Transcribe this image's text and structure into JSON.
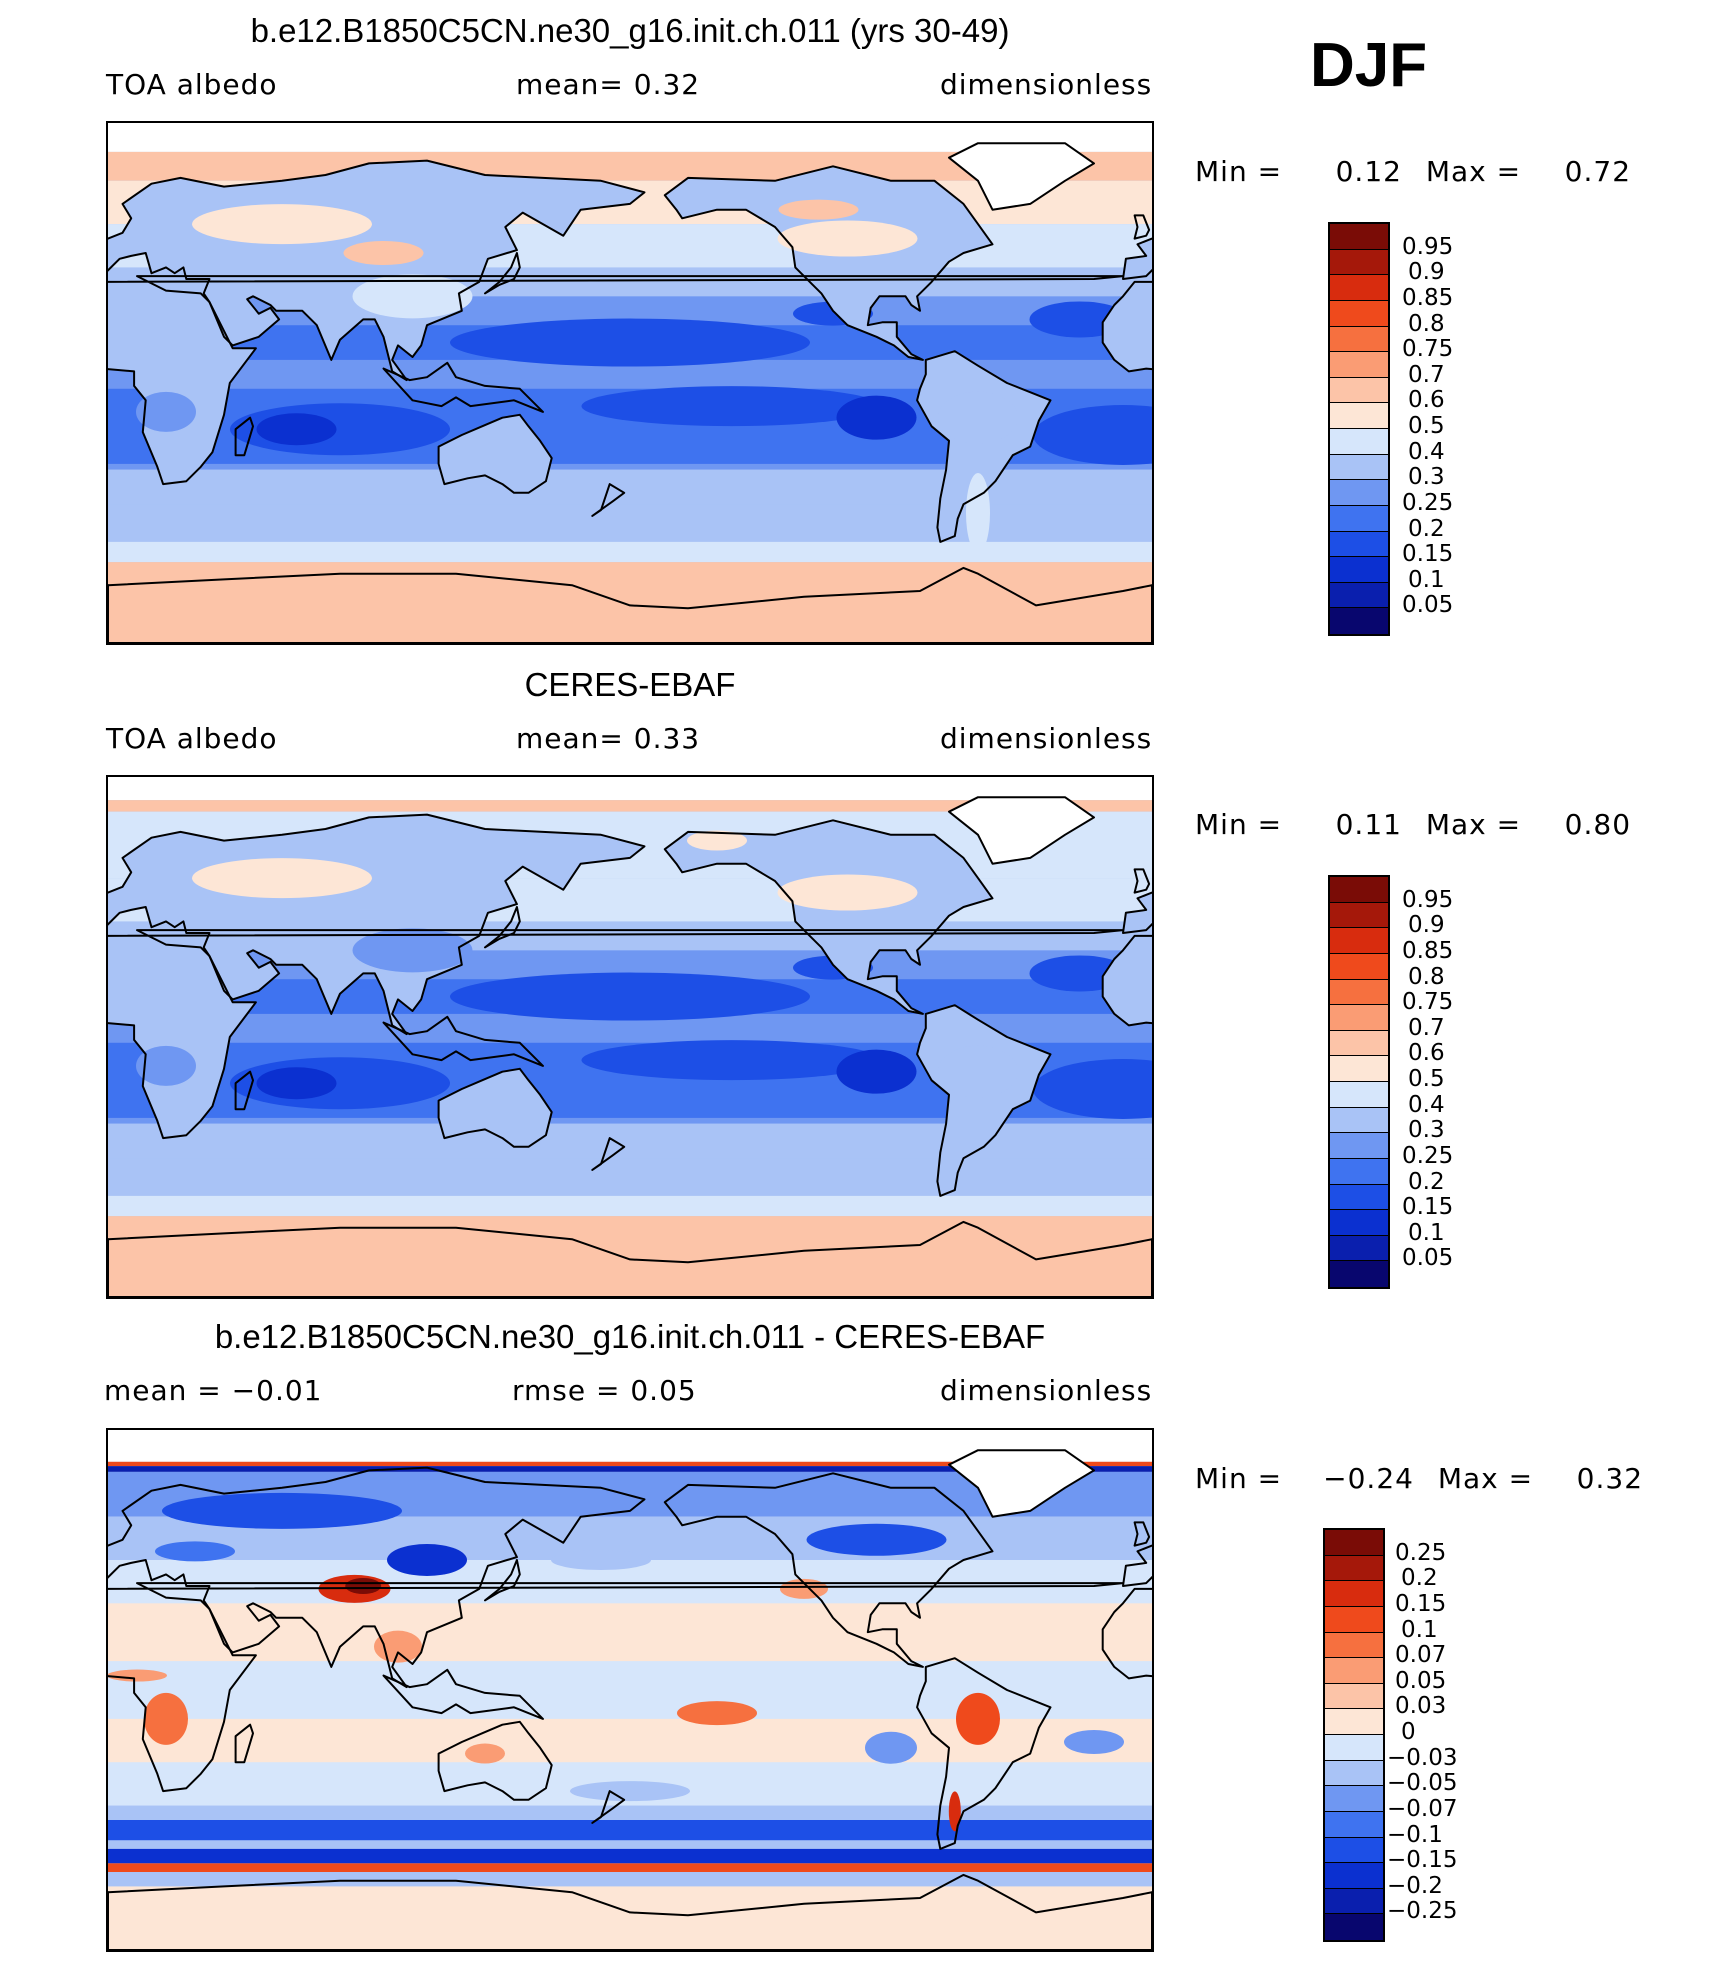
{
  "season": "DJF",
  "palette_albedo": [
    "#08066e",
    "#0a1fae",
    "#0b30d0",
    "#1d4fe6",
    "#3f73f0",
    "#6f97f2",
    "#a9c3f6",
    "#d6e6fb",
    "#fde6d6",
    "#fcc4a8",
    "#fa9c74",
    "#f6703f",
    "#ef4a1c",
    "#d82c0e",
    "#a5180a",
    "#7a0c06"
  ],
  "palette_diff": [
    "#08066e",
    "#0a1fae",
    "#0b30d0",
    "#1d4fe6",
    "#3f73f0",
    "#6f97f2",
    "#a9c3f6",
    "#d6e6fb",
    "#fde6d6",
    "#fcc4a8",
    "#fa9c74",
    "#f6703f",
    "#ef4a1c",
    "#d82c0e",
    "#a5180a",
    "#7a0c06"
  ],
  "panels": [
    {
      "title": "b.e12.B1850C5CN.ne30_g16.init.ch.011 (yrs 30-49)",
      "left_label": "TOA albedo",
      "center_label": "mean=    0.32",
      "right_label": "dimensionless",
      "min_label": "Min =",
      "min_value": "0.12",
      "max_label": "Max =",
      "max_value": "0.72",
      "mean": 0.32,
      "colorbar_levels": [
        "0.95",
        "0.9",
        "0.85",
        "0.8",
        "0.75",
        "0.7",
        "0.6",
        "0.5",
        "0.4",
        "0.3",
        "0.25",
        "0.2",
        "0.15",
        "0.1",
        "0.05"
      ],
      "kind": "model"
    },
    {
      "title": "CERES-EBAF",
      "left_label": "TOA albedo",
      "center_label": "mean=    0.33",
      "right_label": "dimensionless",
      "min_label": "Min =",
      "min_value": "0.11",
      "max_label": "Max =",
      "max_value": "0.80",
      "mean": 0.33,
      "colorbar_levels": [
        "0.95",
        "0.9",
        "0.85",
        "0.8",
        "0.75",
        "0.7",
        "0.6",
        "0.5",
        "0.4",
        "0.3",
        "0.25",
        "0.2",
        "0.15",
        "0.1",
        "0.05"
      ],
      "kind": "obs"
    },
    {
      "title": "b.e12.B1850C5CN.ne30_g16.init.ch.011 - CERES-EBAF",
      "left_label": "mean =   −0.01",
      "center_label": "rmse =    0.05",
      "right_label": "dimensionless",
      "min_label": "Min =",
      "min_value": "−0.24",
      "max_label": "Max =",
      "max_value": "0.32",
      "mean": -0.01,
      "rmse": 0.05,
      "colorbar_levels": [
        "0.25",
        "0.2",
        "0.15",
        "0.1",
        "0.07",
        "0.05",
        "0.03",
        "0",
        "−0.03",
        "−0.05",
        "−0.07",
        "−0.1",
        "−0.15",
        "−0.2",
        "−0.25"
      ],
      "kind": "diff"
    }
  ]
}
